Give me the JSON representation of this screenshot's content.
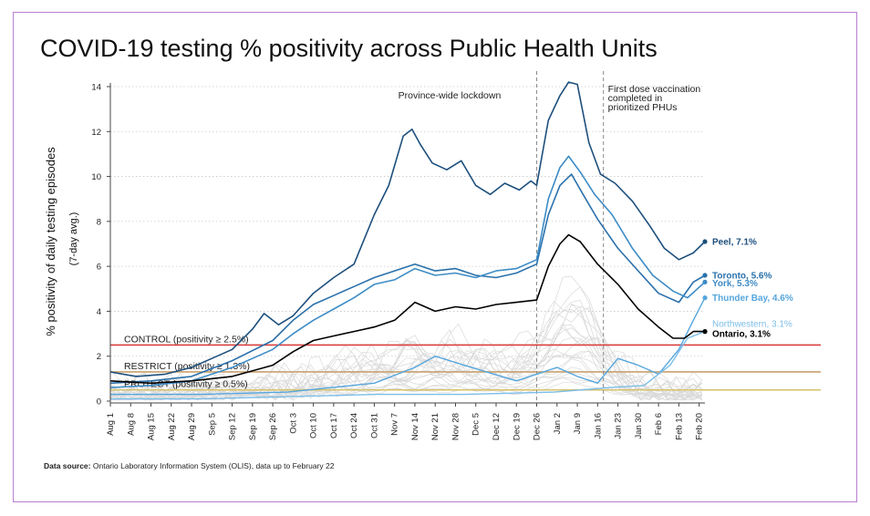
{
  "title": "COVID-19 testing % positivity across Public Health Units",
  "data_source": {
    "label": "Data source:",
    "text": "Ontario Laboratory Information System (OLIS), data up to February 22"
  },
  "colors": {
    "peel": "#1d4f7c",
    "toronto": "#2a70ab",
    "york": "#3d8cc6",
    "thunder_bay": "#56a6dd",
    "northwestern": "#7cbde7",
    "ontario": "#000000",
    "others": "#d9d9d9",
    "control": "#d9403d",
    "restrict": "#c9a16e",
    "protect": "#d6c36f"
  },
  "chart_data": {
    "type": "line",
    "title": "COVID-19 testing % positivity across Public Health Units",
    "ylabel": "% positivity of daily testing episodes",
    "ylabel_sub": "(7-day avg.)",
    "xlabel": "",
    "ylim": [
      0,
      14
    ],
    "xlim": [
      "2020-08-01",
      "2021-02-22"
    ],
    "grid": true,
    "yticks": [
      0,
      2,
      4,
      6,
      8,
      10,
      12,
      14
    ],
    "xticks": [
      {
        "date": "2020-08-01",
        "label": "Aug 1"
      },
      {
        "date": "2020-08-08",
        "label": "Aug 8"
      },
      {
        "date": "2020-08-15",
        "label": "Aug 15"
      },
      {
        "date": "2020-08-22",
        "label": "Aug 22"
      },
      {
        "date": "2020-08-29",
        "label": "Aug 29"
      },
      {
        "date": "2020-09-05",
        "label": "Sep 5"
      },
      {
        "date": "2020-09-12",
        "label": "Sep 12"
      },
      {
        "date": "2020-09-19",
        "label": "Sep 19"
      },
      {
        "date": "2020-09-26",
        "label": "Sep 26"
      },
      {
        "date": "2020-10-03",
        "label": "Oct 3"
      },
      {
        "date": "2020-10-10",
        "label": "Oct 10"
      },
      {
        "date": "2020-10-17",
        "label": "Oct 17"
      },
      {
        "date": "2020-10-24",
        "label": "Oct 24"
      },
      {
        "date": "2020-10-31",
        "label": "Oct 31"
      },
      {
        "date": "2020-11-07",
        "label": "Nov 7"
      },
      {
        "date": "2020-11-14",
        "label": "Nov 14"
      },
      {
        "date": "2020-11-21",
        "label": "Nov 21"
      },
      {
        "date": "2020-11-28",
        "label": "Nov 28"
      },
      {
        "date": "2020-12-05",
        "label": "Dec 5"
      },
      {
        "date": "2020-12-12",
        "label": "Dec 12"
      },
      {
        "date": "2020-12-19",
        "label": "Dec 19"
      },
      {
        "date": "2020-12-26",
        "label": "Dec 26"
      },
      {
        "date": "2021-01-02",
        "label": "Jan 2"
      },
      {
        "date": "2021-01-09",
        "label": "Jan 9"
      },
      {
        "date": "2021-01-16",
        "label": "Jan 16"
      },
      {
        "date": "2021-01-23",
        "label": "Jan 23"
      },
      {
        "date": "2021-01-30",
        "label": "Jan 30"
      },
      {
        "date": "2021-02-06",
        "label": "Feb 6"
      },
      {
        "date": "2021-02-13",
        "label": "Feb 13"
      },
      {
        "date": "2021-02-20",
        "label": "Feb 20"
      }
    ],
    "thresholds": [
      {
        "label": "CONTROL (positivity ≥ 2.5%)",
        "value": 2.5,
        "color_key": "control"
      },
      {
        "label": "RESTRICT (positivity ≥ 1.3%)",
        "value": 1.3,
        "color_key": "restrict"
      },
      {
        "label": "PROTECT (positivity ≥ 0.5%)",
        "value": 0.5,
        "color_key": "protect"
      }
    ],
    "annotations": [
      {
        "text": [
          "Province-wide lockdown"
        ],
        "date": "2020-11-30",
        "y": 13.8,
        "vline": "2020-12-26"
      },
      {
        "text": [
          "First dose vaccination",
          "completed in",
          "prioritized PHUs"
        ],
        "date": "2021-01-18",
        "y": 14.0,
        "vline": "2021-01-18"
      }
    ],
    "end_labels": [
      {
        "text": "Peel, 7.1%",
        "value": 7.1,
        "label_y": 7.1,
        "color_key": "peel",
        "bold": true
      },
      {
        "text": "Toronto, 5.6%",
        "value": 5.6,
        "label_y": 5.6,
        "color_key": "toronto",
        "bold": true
      },
      {
        "text": "York, 5.3%",
        "value": 5.3,
        "label_y": 5.25,
        "color_key": "york",
        "bold": true
      },
      {
        "text": "Thunder Bay, 4.6%",
        "value": 4.6,
        "label_y": 4.6,
        "color_key": "thunder_bay",
        "bold": true
      },
      {
        "text": "Northwestern, 3.1%",
        "value": 3.1,
        "label_y": 3.45,
        "color_key": "northwestern",
        "bold": false
      },
      {
        "text": "Ontario, 3.1%",
        "value": 3.1,
        "label_y": 3.0,
        "color_key": "ontario",
        "bold": true
      }
    ],
    "series": [
      {
        "name": "Peel",
        "color_key": "peel",
        "width": 1.6,
        "points": [
          [
            "2020-08-01",
            1.3
          ],
          [
            "2020-08-10",
            1.1
          ],
          [
            "2020-08-20",
            1.2
          ],
          [
            "2020-08-29",
            1.5
          ],
          [
            "2020-09-05",
            1.9
          ],
          [
            "2020-09-12",
            2.3
          ],
          [
            "2020-09-19",
            3.2
          ],
          [
            "2020-09-23",
            3.9
          ],
          [
            "2020-09-28",
            3.4
          ],
          [
            "2020-10-03",
            3.8
          ],
          [
            "2020-10-10",
            4.8
          ],
          [
            "2020-10-17",
            5.5
          ],
          [
            "2020-10-24",
            6.1
          ],
          [
            "2020-10-31",
            8.3
          ],
          [
            "2020-11-05",
            9.6
          ],
          [
            "2020-11-10",
            11.8
          ],
          [
            "2020-11-13",
            12.1
          ],
          [
            "2020-11-16",
            11.4
          ],
          [
            "2020-11-20",
            10.6
          ],
          [
            "2020-11-25",
            10.3
          ],
          [
            "2020-11-30",
            10.7
          ],
          [
            "2020-12-05",
            9.6
          ],
          [
            "2020-12-10",
            9.2
          ],
          [
            "2020-12-15",
            9.7
          ],
          [
            "2020-12-20",
            9.4
          ],
          [
            "2020-12-24",
            9.8
          ],
          [
            "2020-12-26",
            9.6
          ],
          [
            "2020-12-30",
            12.5
          ],
          [
            "2021-01-03",
            13.6
          ],
          [
            "2021-01-06",
            14.2
          ],
          [
            "2021-01-09",
            14.1
          ],
          [
            "2021-01-13",
            11.5
          ],
          [
            "2021-01-17",
            10.1
          ],
          [
            "2021-01-22",
            9.7
          ],
          [
            "2021-01-28",
            8.9
          ],
          [
            "2021-02-03",
            7.8
          ],
          [
            "2021-02-08",
            6.8
          ],
          [
            "2021-02-13",
            6.3
          ],
          [
            "2021-02-18",
            6.6
          ],
          [
            "2021-02-22",
            7.1
          ]
        ]
      },
      {
        "name": "Toronto",
        "color_key": "toronto",
        "width": 1.6,
        "points": [
          [
            "2020-08-01",
            0.8
          ],
          [
            "2020-08-15",
            0.9
          ],
          [
            "2020-08-29",
            1.1
          ],
          [
            "2020-09-12",
            1.8
          ],
          [
            "2020-09-26",
            2.7
          ],
          [
            "2020-10-03",
            3.6
          ],
          [
            "2020-10-10",
            4.3
          ],
          [
            "2020-10-17",
            4.7
          ],
          [
            "2020-10-24",
            5.1
          ],
          [
            "2020-10-31",
            5.5
          ],
          [
            "2020-11-07",
            5.8
          ],
          [
            "2020-11-14",
            6.1
          ],
          [
            "2020-11-21",
            5.8
          ],
          [
            "2020-11-28",
            5.9
          ],
          [
            "2020-12-05",
            5.6
          ],
          [
            "2020-12-12",
            5.5
          ],
          [
            "2020-12-19",
            5.7
          ],
          [
            "2020-12-26",
            6.1
          ],
          [
            "2020-12-30",
            8.3
          ],
          [
            "2021-01-03",
            9.6
          ],
          [
            "2021-01-07",
            10.1
          ],
          [
            "2021-01-11",
            9.2
          ],
          [
            "2021-01-16",
            8.1
          ],
          [
            "2021-01-23",
            6.8
          ],
          [
            "2021-01-30",
            5.8
          ],
          [
            "2021-02-06",
            4.8
          ],
          [
            "2021-02-13",
            4.4
          ],
          [
            "2021-02-18",
            5.3
          ],
          [
            "2021-02-22",
            5.6
          ]
        ]
      },
      {
        "name": "York",
        "color_key": "york",
        "width": 1.6,
        "points": [
          [
            "2020-08-01",
            0.6
          ],
          [
            "2020-08-15",
            0.7
          ],
          [
            "2020-08-29",
            0.9
          ],
          [
            "2020-09-12",
            1.5
          ],
          [
            "2020-09-26",
            2.3
          ],
          [
            "2020-10-03",
            3.0
          ],
          [
            "2020-10-10",
            3.6
          ],
          [
            "2020-10-17",
            4.1
          ],
          [
            "2020-10-24",
            4.6
          ],
          [
            "2020-10-31",
            5.2
          ],
          [
            "2020-11-07",
            5.4
          ],
          [
            "2020-11-14",
            5.9
          ],
          [
            "2020-11-21",
            5.6
          ],
          [
            "2020-11-28",
            5.7
          ],
          [
            "2020-12-05",
            5.5
          ],
          [
            "2020-12-12",
            5.8
          ],
          [
            "2020-12-19",
            5.9
          ],
          [
            "2020-12-26",
            6.3
          ],
          [
            "2020-12-30",
            9.0
          ],
          [
            "2021-01-03",
            10.4
          ],
          [
            "2021-01-06",
            10.9
          ],
          [
            "2021-01-10",
            10.2
          ],
          [
            "2021-01-15",
            9.2
          ],
          [
            "2021-01-21",
            8.3
          ],
          [
            "2021-01-28",
            6.8
          ],
          [
            "2021-02-04",
            5.6
          ],
          [
            "2021-02-11",
            4.9
          ],
          [
            "2021-02-16",
            4.6
          ],
          [
            "2021-02-22",
            5.3
          ]
        ]
      },
      {
        "name": "Thunder Bay",
        "color_key": "thunder_bay",
        "width": 1.4,
        "points": [
          [
            "2020-08-01",
            0.3
          ],
          [
            "2020-09-01",
            0.3
          ],
          [
            "2020-10-01",
            0.4
          ],
          [
            "2020-10-31",
            0.8
          ],
          [
            "2020-11-14",
            1.5
          ],
          [
            "2020-11-21",
            2.0
          ],
          [
            "2020-12-01",
            1.6
          ],
          [
            "2020-12-19",
            0.9
          ],
          [
            "2020-12-26",
            1.2
          ],
          [
            "2021-01-02",
            1.5
          ],
          [
            "2021-01-09",
            1.1
          ],
          [
            "2021-01-16",
            0.8
          ],
          [
            "2021-01-23",
            1.9
          ],
          [
            "2021-01-30",
            1.6
          ],
          [
            "2021-02-06",
            1.2
          ],
          [
            "2021-02-13",
            2.3
          ],
          [
            "2021-02-18",
            3.6
          ],
          [
            "2021-02-22",
            4.6
          ]
        ]
      },
      {
        "name": "Northwestern",
        "color_key": "northwestern",
        "width": 1.4,
        "points": [
          [
            "2020-08-01",
            0.1
          ],
          [
            "2020-09-01",
            0.1
          ],
          [
            "2020-10-01",
            0.2
          ],
          [
            "2020-11-01",
            0.3
          ],
          [
            "2020-12-01",
            0.3
          ],
          [
            "2021-01-01",
            0.4
          ],
          [
            "2021-01-20",
            0.6
          ],
          [
            "2021-02-01",
            0.7
          ],
          [
            "2021-02-10",
            1.6
          ],
          [
            "2021-02-16",
            2.8
          ],
          [
            "2021-02-22",
            3.1
          ]
        ]
      },
      {
        "name": "Ontario",
        "color_key": "ontario",
        "width": 1.6,
        "points": [
          [
            "2020-08-01",
            0.9
          ],
          [
            "2020-08-15",
            0.8
          ],
          [
            "2020-08-29",
            0.9
          ],
          [
            "2020-09-12",
            1.1
          ],
          [
            "2020-09-26",
            1.6
          ],
          [
            "2020-10-03",
            2.2
          ],
          [
            "2020-10-10",
            2.7
          ],
          [
            "2020-10-17",
            2.9
          ],
          [
            "2020-10-24",
            3.1
          ],
          [
            "2020-10-31",
            3.3
          ],
          [
            "2020-11-07",
            3.6
          ],
          [
            "2020-11-14",
            4.4
          ],
          [
            "2020-11-21",
            4.0
          ],
          [
            "2020-11-28",
            4.2
          ],
          [
            "2020-12-05",
            4.1
          ],
          [
            "2020-12-12",
            4.3
          ],
          [
            "2020-12-19",
            4.4
          ],
          [
            "2020-12-26",
            4.5
          ],
          [
            "2020-12-30",
            6.0
          ],
          [
            "2021-01-03",
            7.0
          ],
          [
            "2021-01-06",
            7.4
          ],
          [
            "2021-01-10",
            7.1
          ],
          [
            "2021-01-16",
            6.1
          ],
          [
            "2021-01-23",
            5.2
          ],
          [
            "2021-01-30",
            4.1
          ],
          [
            "2021-02-06",
            3.3
          ],
          [
            "2021-02-11",
            2.8
          ],
          [
            "2021-02-15",
            2.8
          ],
          [
            "2021-02-18",
            3.1
          ],
          [
            "2021-02-22",
            3.1
          ]
        ]
      }
    ]
  }
}
